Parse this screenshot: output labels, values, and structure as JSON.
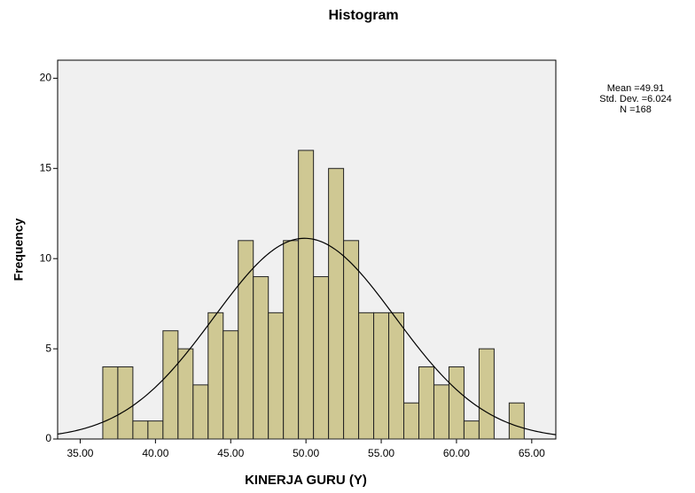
{
  "chart_data": {
    "type": "histogram",
    "title": "Histogram",
    "x_label": "KINERJA GURU (Y)",
    "y_label": "Frequency",
    "bins": [
      36.5,
      37.5,
      38.5,
      39.5,
      40.5,
      41.5,
      42.5,
      43.5,
      44.5,
      45.5,
      46.5,
      47.5,
      48.5,
      49.5,
      50.5,
      51.5,
      52.5,
      53.5,
      54.5,
      55.5,
      56.5,
      57.5,
      58.5,
      59.5,
      60.5,
      61.5,
      62.5,
      63.5,
      64.5
    ],
    "values": [
      4,
      4,
      1,
      1,
      6,
      5,
      3,
      7,
      6,
      11,
      9,
      7,
      11,
      16,
      9,
      15,
      11,
      7,
      7,
      7,
      2,
      4,
      3,
      4,
      1,
      5,
      0,
      2
    ],
    "color": "#cfc893",
    "xlim": [
      33.5,
      66.6
    ],
    "ylim": [
      0,
      21
    ],
    "xticks": [
      {
        "value": 35,
        "label": "35.00"
      },
      {
        "value": 40,
        "label": "40.00"
      },
      {
        "value": 45,
        "label": "45.00"
      },
      {
        "value": 50,
        "label": "50.00"
      },
      {
        "value": 55,
        "label": "55.00"
      },
      {
        "value": 60,
        "label": "60.00"
      },
      {
        "value": 65,
        "label": "65.00"
      }
    ],
    "yticks": [
      0,
      5,
      10,
      15,
      20
    ],
    "normal_curve": {
      "mean": 49.91,
      "std_dev": 6.024,
      "n": 168,
      "labels": [
        "Mean =49.91",
        "Std. Dev. =6.024",
        "N =168"
      ]
    }
  }
}
